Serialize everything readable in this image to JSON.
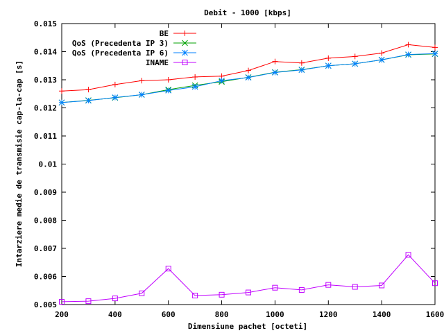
{
  "chart_data": {
    "type": "line",
    "title": "Debit - 1000 [kbps]",
    "xlabel": "Dimensiune pachet [octeti]",
    "ylabel": "Intarziere medie de transmisie cap-la-cap [s]",
    "xlim": [
      200,
      1600
    ],
    "ylim": [
      0.005,
      0.015
    ],
    "x_ticks": [
      "200",
      "400",
      "600",
      "800",
      "1000",
      "1200",
      "1400",
      "1600"
    ],
    "y_ticks": [
      "0.005",
      "0.006",
      "0.007",
      "0.008",
      "0.009",
      "0.01",
      "0.011",
      "0.012",
      "0.013",
      "0.014",
      "0.015"
    ],
    "grid": false,
    "legend_position": "top-right",
    "x": [
      200,
      300,
      400,
      500,
      600,
      700,
      800,
      900,
      1000,
      1100,
      1200,
      1300,
      1400,
      1500,
      1600
    ],
    "series": [
      {
        "name": "BE",
        "color": "#ff0000",
        "marker": "plus",
        "values": [
          0.0126,
          0.01265,
          0.01283,
          0.01297,
          0.013,
          0.0131,
          0.01313,
          0.01333,
          0.01365,
          0.0136,
          0.01377,
          0.01383,
          0.01395,
          0.01425,
          0.01415
        ]
      },
      {
        "name": "QoS (Precedenta IP 3)",
        "color": "#00a000",
        "marker": "cross",
        "values": [
          0.01219,
          0.01227,
          0.01236,
          0.01247,
          0.01265,
          0.0128,
          0.01293,
          0.01309,
          0.01327,
          0.01336,
          0.0135,
          0.01357,
          0.01371,
          0.01389,
          0.01392
        ]
      },
      {
        "name": "QoS (Precedenta IP 6)",
        "color": "#0080ff",
        "marker": "star",
        "values": [
          0.01219,
          0.01226,
          0.01237,
          0.01247,
          0.01262,
          0.01275,
          0.01297,
          0.01308,
          0.01326,
          0.01335,
          0.0135,
          0.01357,
          0.01371,
          0.0139,
          0.01393
        ]
      },
      {
        "name": "INAME",
        "color": "#c000ff",
        "marker": "square",
        "values": [
          0.0051,
          0.00512,
          0.00522,
          0.0054,
          0.00628,
          0.00532,
          0.00535,
          0.00543,
          0.0056,
          0.00552,
          0.0057,
          0.00563,
          0.00568,
          0.00677,
          0.00576
        ]
      }
    ]
  }
}
